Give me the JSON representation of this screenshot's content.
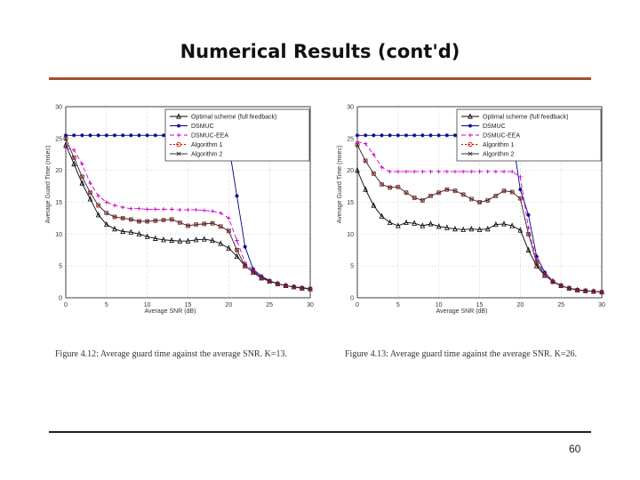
{
  "slide": {
    "title": "Numerical Results (cont'd)",
    "page_number": "60"
  },
  "colors": {
    "rule": "#a0522d",
    "optimal": "#000000",
    "dsmuc": "#00008b",
    "dsmuc_eea": "#cc00cc",
    "alg1": "#cc0000",
    "alg2": "#333333"
  },
  "chart_data": [
    {
      "type": "line",
      "caption": "Figure 4.12: Average guard time against the average SNR. K=13.",
      "xlabel": "Average SNR (dB)",
      "ylabel": "Average Guard Time (msec)",
      "xlim": [
        0,
        30
      ],
      "ylim": [
        0,
        30
      ],
      "xticks": [
        0,
        5,
        10,
        15,
        20,
        25,
        30
      ],
      "yticks": [
        0,
        5,
        10,
        15,
        20,
        25,
        30
      ],
      "grid": true,
      "legend_position": "top-right",
      "x": [
        0,
        1,
        2,
        3,
        4,
        5,
        6,
        7,
        8,
        9,
        10,
        11,
        12,
        13,
        14,
        15,
        16,
        17,
        18,
        19,
        20,
        21,
        22,
        23,
        24,
        25,
        26,
        27,
        28,
        29,
        30
      ],
      "series": [
        {
          "name": "Optimal scheme (full feedback)",
          "values": [
            24,
            21,
            18,
            15.5,
            13,
            11.5,
            10.8,
            10.4,
            10.3,
            10,
            9.6,
            9.3,
            9.1,
            9,
            8.9,
            8.9,
            9.1,
            9.2,
            9.0,
            8.5,
            7.8,
            6.5,
            5.0,
            4.0,
            3.1,
            2.6,
            2.2,
            1.9,
            1.7,
            1.5,
            1.4
          ]
        },
        {
          "name": "DSMUC",
          "values": [
            25.5,
            25.5,
            25.5,
            25.5,
            25.5,
            25.5,
            25.5,
            25.5,
            25.5,
            25.5,
            25.5,
            25.5,
            25.5,
            25.5,
            25.5,
            25.5,
            25.5,
            25.5,
            25.5,
            25.5,
            24,
            16,
            8,
            4.5,
            3.4,
            2.7,
            2.2,
            1.9,
            1.7,
            1.6,
            1.4
          ]
        },
        {
          "name": "DSMUC-EEA",
          "values": [
            23.5,
            23.2,
            21,
            18,
            16,
            15,
            14.5,
            14.2,
            14,
            14,
            13.9,
            13.9,
            13.9,
            13.9,
            13.8,
            13.8,
            13.8,
            13.7,
            13.6,
            13.3,
            12.5,
            9,
            5.5,
            4.3,
            3.2,
            2.6,
            2.2,
            1.9,
            1.7,
            1.5,
            1.4
          ]
        },
        {
          "name": "Algorithm 1",
          "values": [
            25,
            22,
            19,
            16.5,
            14.5,
            13.3,
            12.7,
            12.5,
            12.3,
            12,
            12,
            12.1,
            12.2,
            12.3,
            11.8,
            11.3,
            11.5,
            11.6,
            11.7,
            11.2,
            10.5,
            7.5,
            5,
            4.1,
            3.2,
            2.6,
            2.2,
            1.9,
            1.7,
            1.5,
            1.4
          ]
        },
        {
          "name": "Algorithm 2",
          "values": [
            25,
            22,
            19,
            16.5,
            14.5,
            13.3,
            12.7,
            12.5,
            12.3,
            12,
            12,
            12.1,
            12.2,
            12.3,
            11.8,
            11.3,
            11.5,
            11.6,
            11.7,
            11.2,
            10.5,
            7.5,
            5,
            4.1,
            3.2,
            2.6,
            2.2,
            1.9,
            1.7,
            1.5,
            1.4
          ]
        }
      ]
    },
    {
      "type": "line",
      "caption": "Figure 4.13: Average guard time against the average SNR. K=26.",
      "xlabel": "Average SNR (dB)",
      "ylabel": "Average Guard Time (msec)",
      "xlim": [
        0,
        30
      ],
      "ylim": [
        0,
        30
      ],
      "xticks": [
        0,
        5,
        10,
        15,
        20,
        25,
        30
      ],
      "yticks": [
        0,
        5,
        10,
        15,
        20,
        25,
        30
      ],
      "grid": true,
      "legend_position": "top-right",
      "x": [
        0,
        1,
        2,
        3,
        4,
        5,
        6,
        7,
        8,
        9,
        10,
        11,
        12,
        13,
        14,
        15,
        16,
        17,
        18,
        19,
        20,
        21,
        22,
        23,
        24,
        25,
        26,
        27,
        28,
        29,
        30
      ],
      "series": [
        {
          "name": "Optimal scheme (full feedback)",
          "values": [
            20,
            17,
            14.5,
            12.8,
            11.8,
            11.3,
            11.8,
            11.7,
            11.3,
            11.6,
            11.2,
            11,
            10.8,
            10.7,
            10.8,
            10.7,
            10.8,
            11.5,
            11.6,
            11.3,
            10.6,
            7.5,
            5.0,
            3.5,
            2.6,
            1.9,
            1.5,
            1.2,
            1.1,
            1.0,
            0.9
          ]
        },
        {
          "name": "DSMUC",
          "values": [
            25.5,
            25.5,
            25.5,
            25.5,
            25.5,
            25.5,
            25.5,
            25.5,
            25.5,
            25.5,
            25.5,
            25.5,
            25.5,
            25.5,
            25.5,
            25.5,
            25.5,
            25.5,
            25.5,
            25.5,
            17,
            13,
            6.5,
            4,
            2.6,
            1.9,
            1.5,
            1.3,
            1.1,
            1.0,
            0.9
          ]
        },
        {
          "name": "DSMUC-EEA",
          "values": [
            24.5,
            24.2,
            22.5,
            20.5,
            19.8,
            19.8,
            19.8,
            19.8,
            19.8,
            19.8,
            19.8,
            19.8,
            19.8,
            19.8,
            19.8,
            19.8,
            19.8,
            19.8,
            19.8,
            19.8,
            19,
            11,
            6,
            3.8,
            2.6,
            1.9,
            1.5,
            1.2,
            1.1,
            1.0,
            0.9
          ]
        },
        {
          "name": "Algorithm 1",
          "values": [
            24,
            21.5,
            19.5,
            17.8,
            17.3,
            17.4,
            16.5,
            15.7,
            15.3,
            16,
            16.5,
            17,
            16.8,
            16.2,
            15.5,
            15,
            15.3,
            16,
            16.8,
            16.6,
            15.6,
            10,
            5.5,
            3.6,
            2.5,
            1.9,
            1.5,
            1.2,
            1.1,
            1.0,
            0.9
          ]
        },
        {
          "name": "Algorithm 2",
          "values": [
            24,
            21.5,
            19.5,
            17.8,
            17.3,
            17.4,
            16.5,
            15.7,
            15.3,
            16,
            16.5,
            17,
            16.8,
            16.2,
            15.5,
            15,
            15.3,
            16,
            16.8,
            16.6,
            15.6,
            10,
            5.5,
            3.6,
            2.5,
            1.9,
            1.5,
            1.2,
            1.1,
            1.0,
            0.9
          ]
        }
      ]
    }
  ]
}
